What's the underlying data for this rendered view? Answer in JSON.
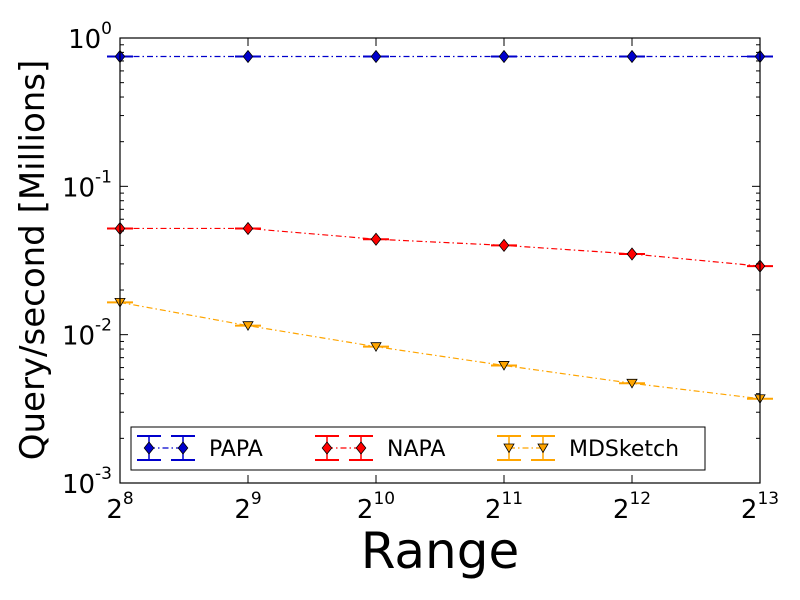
{
  "chart_data": {
    "type": "line",
    "xlabel": "Range",
    "ylabel": "Query/second [Millions]",
    "x_ticks": [
      {
        "base": "2",
        "exp": "8"
      },
      {
        "base": "2",
        "exp": "9"
      },
      {
        "base": "2",
        "exp": "10"
      },
      {
        "base": "2",
        "exp": "11"
      },
      {
        "base": "2",
        "exp": "12"
      },
      {
        "base": "2",
        "exp": "13"
      }
    ],
    "y_ticks": [
      {
        "base": "10",
        "exp": "0"
      },
      {
        "base": "10",
        "exp": "-1"
      },
      {
        "base": "10",
        "exp": "-2"
      },
      {
        "base": "10",
        "exp": "-3"
      }
    ],
    "x": [
      256,
      512,
      1024,
      2048,
      4096,
      8192
    ],
    "xscale": "log2",
    "yscale": "log10",
    "xlim": [
      256,
      8192
    ],
    "ylim": [
      0.001,
      1
    ],
    "grid": false,
    "legend_position": "bottom",
    "series": [
      {
        "name": "PAPA",
        "color": "#0000cc",
        "marker": "diamond",
        "values": [
          0.75,
          0.75,
          0.75,
          0.75,
          0.75,
          0.75
        ]
      },
      {
        "name": "NAPA",
        "color": "#ff0000",
        "marker": "diamond",
        "values": [
          0.052,
          0.052,
          0.044,
          0.04,
          0.035,
          0.029
        ]
      },
      {
        "name": "MDSketch",
        "color": "#ffa500",
        "marker": "triangle-down",
        "values": [
          0.0165,
          0.0115,
          0.0083,
          0.0062,
          0.0047,
          0.0037
        ]
      }
    ]
  }
}
